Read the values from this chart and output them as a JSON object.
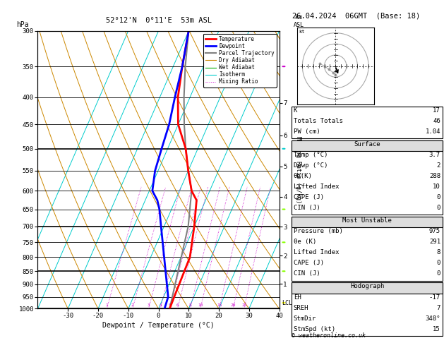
{
  "title_left": "52°12'N  0°11'E  53m ASL",
  "title_right": "26.04.2024  06GMT  (Base: 18)",
  "xlabel": "Dewpoint / Temperature (°C)",
  "pressure_levels": [
    300,
    350,
    400,
    450,
    500,
    550,
    600,
    650,
    700,
    750,
    800,
    850,
    900,
    950,
    1000
  ],
  "temp_ticks": [
    -30,
    -20,
    -10,
    0,
    10,
    20,
    30,
    40
  ],
  "km_labels": [
    "7",
    "6",
    "5",
    "4",
    "3",
    "2",
    "1"
  ],
  "km_pressures": [
    410,
    472,
    540,
    616,
    701,
    795,
    898
  ],
  "lcl_pressure": 975,
  "mixing_ratio_vals": [
    1,
    2,
    3,
    4,
    5,
    6,
    8,
    10,
    15,
    20,
    25
  ],
  "legend_items": [
    {
      "label": "Temperature",
      "color": "#ff0000",
      "lw": 2.0,
      "ls": "-"
    },
    {
      "label": "Dewpoint",
      "color": "#0000ff",
      "lw": 2.0,
      "ls": "-"
    },
    {
      "label": "Parcel Trajectory",
      "color": "#808080",
      "lw": 1.5,
      "ls": "-"
    },
    {
      "label": "Dry Adiabat",
      "color": "#cc8800",
      "lw": 0.8,
      "ls": "-"
    },
    {
      "label": "Wet Adiabat",
      "color": "#00aa00",
      "lw": 0.8,
      "ls": "-"
    },
    {
      "label": "Isotherm",
      "color": "#00cccc",
      "lw": 0.8,
      "ls": "-"
    },
    {
      "label": "Mixing Ratio",
      "color": "#cc00cc",
      "lw": 0.7,
      "ls": ":"
    }
  ],
  "temp_profile_T": [
    -30,
    -27,
    -24,
    -20,
    -14,
    -10,
    -6,
    -3,
    0,
    3,
    3.5,
    3.7
  ],
  "temp_profile_P": [
    300,
    350,
    400,
    450,
    500,
    550,
    600,
    625,
    700,
    800,
    950,
    1000
  ],
  "dewp_profile_T": [
    -30,
    -27,
    -25,
    -23,
    -22,
    -21,
    -19,
    -16,
    -14,
    -11,
    1.5,
    2
  ],
  "dewp_profile_P": [
    300,
    350,
    400,
    450,
    500,
    550,
    600,
    625,
    650,
    700,
    950,
    1000
  ],
  "parcel_profile_T": [
    -30,
    -26,
    -22,
    -18,
    -14,
    -10,
    -6,
    -2,
    2,
    3.7
  ],
  "parcel_profile_P": [
    300,
    350,
    400,
    450,
    500,
    550,
    600,
    700,
    900,
    1000
  ],
  "wind_barbs": [
    {
      "color": "#cc00cc",
      "pressure": 350,
      "style": "barb_up"
    },
    {
      "color": "#00cccc",
      "pressure": 500,
      "style": "barb_up"
    },
    {
      "color": "#88ff00",
      "pressure": 650,
      "style": "barb_up"
    },
    {
      "color": "#88ff00",
      "pressure": 750,
      "style": "barb_up"
    },
    {
      "color": "#88ff00",
      "pressure": 850,
      "style": "barb_up"
    },
    {
      "color": "#ffff00",
      "pressure": 975,
      "style": "barb_up"
    }
  ],
  "background_color": "#ffffff",
  "hodograph_circles": [
    10,
    20,
    30
  ],
  "table_rows_top": [
    [
      "K",
      "17"
    ],
    [
      "Totals Totals",
      "46"
    ],
    [
      "PW (cm)",
      "1.04"
    ]
  ],
  "table_surface": [
    [
      "Temp (°C)",
      "3.7"
    ],
    [
      "Dewp (°C)",
      "2"
    ],
    [
      "θe(K)",
      "288"
    ],
    [
      "Lifted Index",
      "10"
    ],
    [
      "CAPE (J)",
      "0"
    ],
    [
      "CIN (J)",
      "0"
    ]
  ],
  "table_mu": [
    [
      "Pressure (mb)",
      "975"
    ],
    [
      "θe (K)",
      "291"
    ],
    [
      "Lifted Index",
      "8"
    ],
    [
      "CAPE (J)",
      "0"
    ],
    [
      "CIN (J)",
      "0"
    ]
  ],
  "table_hodo": [
    [
      "EH",
      "-17"
    ],
    [
      "SREH",
      "7"
    ],
    [
      "StmDir",
      "348°"
    ],
    [
      "StmSpd (kt)",
      "15"
    ]
  ]
}
